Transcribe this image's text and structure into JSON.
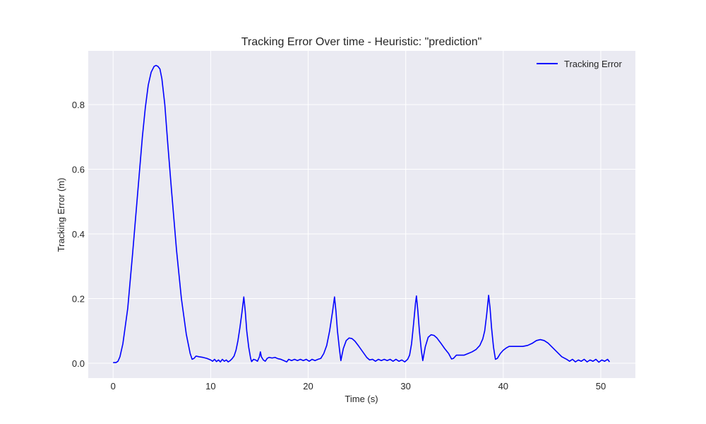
{
  "chart_data": {
    "type": "line",
    "title": "Tracking Error Over time - Heuristic: \"prediction\"",
    "xlabel": "Time (s)",
    "ylabel": "Tracking Error (m)",
    "xlim": [
      -2.55,
      53.55
    ],
    "ylim": [
      -0.046,
      0.966
    ],
    "xticks": [
      0,
      10,
      20,
      30,
      40,
      50
    ],
    "yticks": [
      0.0,
      0.2,
      0.4,
      0.6,
      0.8
    ],
    "xtick_labels": [
      "0",
      "10",
      "20",
      "30",
      "40",
      "50"
    ],
    "ytick_labels": [
      "0.0",
      "0.2",
      "0.4",
      "0.6",
      "0.8"
    ],
    "grid": true,
    "legend": "top-right",
    "colors": {
      "background": "#eaeaf2",
      "grid": "#ffffff",
      "line": "#0000ff"
    },
    "series": [
      {
        "name": "Tracking Error",
        "color": "#0000ff",
        "points": [
          [
            0.0,
            0.002
          ],
          [
            0.3,
            0.002
          ],
          [
            0.5,
            0.006
          ],
          [
            0.7,
            0.02
          ],
          [
            1.0,
            0.06
          ],
          [
            1.5,
            0.17
          ],
          [
            2.0,
            0.34
          ],
          [
            2.5,
            0.52
          ],
          [
            3.0,
            0.7
          ],
          [
            3.3,
            0.79
          ],
          [
            3.6,
            0.86
          ],
          [
            3.9,
            0.9
          ],
          [
            4.2,
            0.918
          ],
          [
            4.4,
            0.921
          ],
          [
            4.6,
            0.918
          ],
          [
            4.8,
            0.91
          ],
          [
            5.0,
            0.88
          ],
          [
            5.3,
            0.8
          ],
          [
            5.6,
            0.68
          ],
          [
            6.0,
            0.53
          ],
          [
            6.5,
            0.35
          ],
          [
            7.0,
            0.2
          ],
          [
            7.5,
            0.09
          ],
          [
            7.9,
            0.03
          ],
          [
            8.1,
            0.012
          ],
          [
            8.3,
            0.015
          ],
          [
            8.5,
            0.022
          ],
          [
            8.8,
            0.02
          ],
          [
            9.2,
            0.018
          ],
          [
            9.6,
            0.015
          ],
          [
            10.0,
            0.01
          ],
          [
            10.2,
            0.006
          ],
          [
            10.4,
            0.012
          ],
          [
            10.6,
            0.005
          ],
          [
            10.8,
            0.01
          ],
          [
            11.0,
            0.004
          ],
          [
            11.2,
            0.012
          ],
          [
            11.4,
            0.006
          ],
          [
            11.6,
            0.01
          ],
          [
            11.8,
            0.004
          ],
          [
            12.0,
            0.008
          ],
          [
            12.2,
            0.014
          ],
          [
            12.4,
            0.022
          ],
          [
            12.6,
            0.04
          ],
          [
            12.8,
            0.07
          ],
          [
            13.0,
            0.11
          ],
          [
            13.2,
            0.155
          ],
          [
            13.4,
            0.205
          ],
          [
            13.55,
            0.16
          ],
          [
            13.7,
            0.1
          ],
          [
            13.9,
            0.05
          ],
          [
            14.1,
            0.015
          ],
          [
            14.2,
            0.005
          ],
          [
            14.4,
            0.012
          ],
          [
            14.6,
            0.01
          ],
          [
            14.8,
            0.006
          ],
          [
            15.0,
            0.02
          ],
          [
            15.1,
            0.035
          ],
          [
            15.2,
            0.02
          ],
          [
            15.4,
            0.01
          ],
          [
            15.6,
            0.006
          ],
          [
            15.8,
            0.015
          ],
          [
            16.0,
            0.018
          ],
          [
            16.3,
            0.016
          ],
          [
            16.6,
            0.018
          ],
          [
            16.9,
            0.014
          ],
          [
            17.2,
            0.012
          ],
          [
            17.5,
            0.008
          ],
          [
            17.8,
            0.004
          ],
          [
            18.0,
            0.012
          ],
          [
            18.3,
            0.008
          ],
          [
            18.6,
            0.012
          ],
          [
            18.9,
            0.008
          ],
          [
            19.2,
            0.012
          ],
          [
            19.5,
            0.008
          ],
          [
            19.8,
            0.012
          ],
          [
            20.1,
            0.006
          ],
          [
            20.4,
            0.012
          ],
          [
            20.7,
            0.008
          ],
          [
            21.0,
            0.012
          ],
          [
            21.3,
            0.015
          ],
          [
            21.6,
            0.03
          ],
          [
            21.9,
            0.055
          ],
          [
            22.2,
            0.1
          ],
          [
            22.5,
            0.16
          ],
          [
            22.7,
            0.205
          ],
          [
            22.85,
            0.16
          ],
          [
            23.0,
            0.1
          ],
          [
            23.2,
            0.045
          ],
          [
            23.35,
            0.008
          ],
          [
            23.6,
            0.045
          ],
          [
            23.9,
            0.07
          ],
          [
            24.2,
            0.078
          ],
          [
            24.5,
            0.076
          ],
          [
            24.8,
            0.068
          ],
          [
            25.2,
            0.052
          ],
          [
            25.6,
            0.035
          ],
          [
            26.0,
            0.018
          ],
          [
            26.3,
            0.01
          ],
          [
            26.6,
            0.012
          ],
          [
            26.9,
            0.006
          ],
          [
            27.2,
            0.012
          ],
          [
            27.5,
            0.008
          ],
          [
            27.8,
            0.012
          ],
          [
            28.1,
            0.008
          ],
          [
            28.4,
            0.012
          ],
          [
            28.7,
            0.006
          ],
          [
            29.0,
            0.012
          ],
          [
            29.3,
            0.006
          ],
          [
            29.6,
            0.01
          ],
          [
            29.9,
            0.004
          ],
          [
            30.2,
            0.012
          ],
          [
            30.4,
            0.025
          ],
          [
            30.6,
            0.06
          ],
          [
            30.8,
            0.12
          ],
          [
            31.0,
            0.185
          ],
          [
            31.1,
            0.208
          ],
          [
            31.25,
            0.16
          ],
          [
            31.4,
            0.1
          ],
          [
            31.6,
            0.04
          ],
          [
            31.75,
            0.008
          ],
          [
            32.0,
            0.05
          ],
          [
            32.3,
            0.08
          ],
          [
            32.6,
            0.088
          ],
          [
            32.9,
            0.086
          ],
          [
            33.2,
            0.078
          ],
          [
            33.6,
            0.062
          ],
          [
            34.0,
            0.045
          ],
          [
            34.4,
            0.03
          ],
          [
            34.7,
            0.013
          ],
          [
            34.9,
            0.015
          ],
          [
            35.2,
            0.025
          ],
          [
            35.6,
            0.025
          ],
          [
            36.0,
            0.025
          ],
          [
            36.4,
            0.03
          ],
          [
            36.8,
            0.035
          ],
          [
            37.2,
            0.042
          ],
          [
            37.6,
            0.055
          ],
          [
            37.9,
            0.075
          ],
          [
            38.1,
            0.1
          ],
          [
            38.3,
            0.15
          ],
          [
            38.5,
            0.21
          ],
          [
            38.65,
            0.17
          ],
          [
            38.8,
            0.11
          ],
          [
            39.0,
            0.05
          ],
          [
            39.2,
            0.012
          ],
          [
            39.4,
            0.015
          ],
          [
            39.7,
            0.03
          ],
          [
            40.0,
            0.04
          ],
          [
            40.3,
            0.047
          ],
          [
            40.6,
            0.052
          ],
          [
            41.0,
            0.052
          ],
          [
            41.5,
            0.052
          ],
          [
            42.0,
            0.052
          ],
          [
            42.5,
            0.055
          ],
          [
            43.0,
            0.062
          ],
          [
            43.4,
            0.07
          ],
          [
            43.8,
            0.073
          ],
          [
            44.2,
            0.07
          ],
          [
            44.6,
            0.062
          ],
          [
            45.0,
            0.05
          ],
          [
            45.5,
            0.035
          ],
          [
            46.0,
            0.02
          ],
          [
            46.5,
            0.012
          ],
          [
            46.8,
            0.006
          ],
          [
            47.1,
            0.012
          ],
          [
            47.4,
            0.004
          ],
          [
            47.7,
            0.01
          ],
          [
            48.0,
            0.006
          ],
          [
            48.3,
            0.012
          ],
          [
            48.6,
            0.004
          ],
          [
            48.9,
            0.01
          ],
          [
            49.2,
            0.006
          ],
          [
            49.5,
            0.012
          ],
          [
            49.8,
            0.003
          ],
          [
            50.1,
            0.01
          ],
          [
            50.4,
            0.006
          ],
          [
            50.7,
            0.012
          ],
          [
            50.9,
            0.004
          ]
        ]
      }
    ]
  }
}
